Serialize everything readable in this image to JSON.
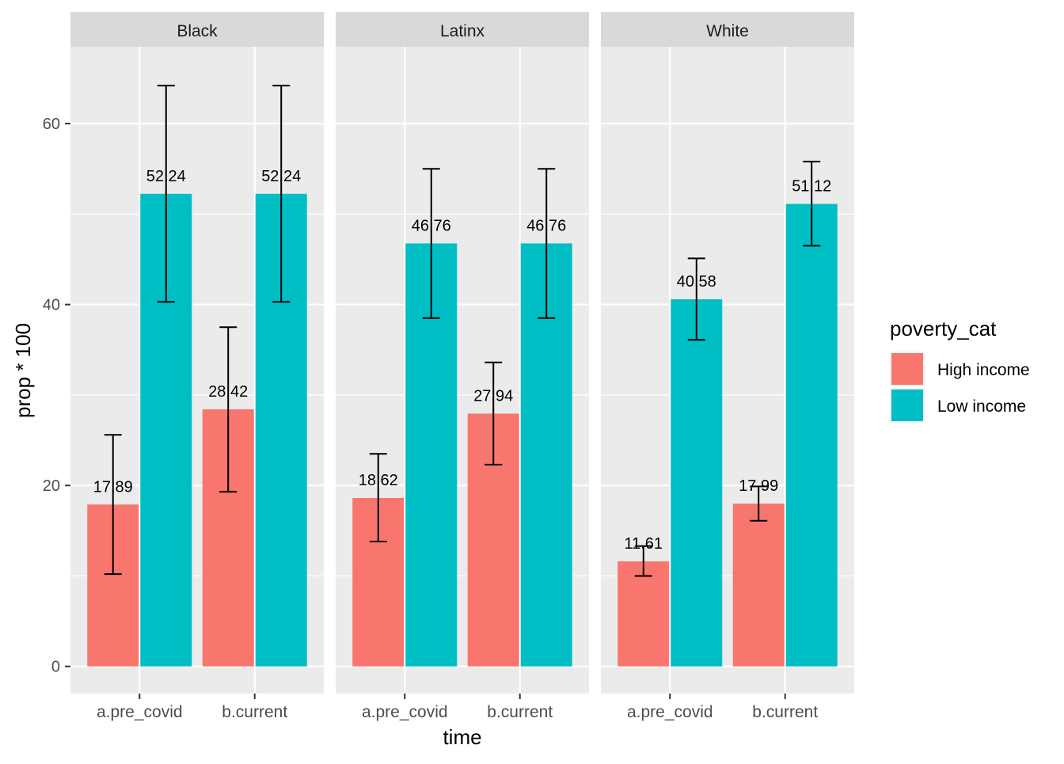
{
  "chart_data": {
    "type": "bar",
    "facets": [
      "Black",
      "Latinx",
      "White"
    ],
    "categories": [
      "a.pre_covid",
      "b.current"
    ],
    "xlabel": "time",
    "ylabel": "prop * 100",
    "ylim": [
      -3,
      68.5
    ],
    "yticks": [
      0,
      20,
      40,
      60
    ],
    "grid": true,
    "legend": {
      "title": "poverty_cat",
      "position": "right",
      "entries": [
        {
          "name": "High income",
          "color": "#F8766D"
        },
        {
          "name": "Low income",
          "color": "#00BFC4"
        }
      ]
    },
    "colors": {
      "High income": "#F8766D",
      "Low income": "#00BFC4",
      "panel_bg": "#EBEBEB",
      "strip_bg": "#D9D9D9",
      "grid": "#FFFFFF",
      "errorbar": "#000000"
    },
    "panels": [
      {
        "facet": "Black",
        "bars": [
          {
            "category": "a.pre_covid",
            "group": "High income",
            "value": 17.89,
            "label": "17.89",
            "ymin": 10.2,
            "ymax": 25.6
          },
          {
            "category": "a.pre_covid",
            "group": "Low income",
            "value": 52.24,
            "label": "52.24",
            "ymin": 40.3,
            "ymax": 64.2
          },
          {
            "category": "b.current",
            "group": "High income",
            "value": 28.42,
            "label": "28.42",
            "ymin": 19.3,
            "ymax": 37.5
          },
          {
            "category": "b.current",
            "group": "Low income",
            "value": 52.24,
            "label": "52.24",
            "ymin": 40.3,
            "ymax": 64.2
          }
        ]
      },
      {
        "facet": "Latinx",
        "bars": [
          {
            "category": "a.pre_covid",
            "group": "High income",
            "value": 18.62,
            "label": "18.62",
            "ymin": 13.8,
            "ymax": 23.5
          },
          {
            "category": "a.pre_covid",
            "group": "Low income",
            "value": 46.76,
            "label": "46.76",
            "ymin": 38.5,
            "ymax": 55.0
          },
          {
            "category": "b.current",
            "group": "High income",
            "value": 27.94,
            "label": "27.94",
            "ymin": 22.3,
            "ymax": 33.6
          },
          {
            "category": "b.current",
            "group": "Low income",
            "value": 46.76,
            "label": "46.76",
            "ymin": 38.5,
            "ymax": 55.0
          }
        ]
      },
      {
        "facet": "White",
        "bars": [
          {
            "category": "a.pre_covid",
            "group": "High income",
            "value": 11.61,
            "label": "11.61",
            "ymin": 10.0,
            "ymax": 13.3
          },
          {
            "category": "a.pre_covid",
            "group": "Low income",
            "value": 40.58,
            "label": "40.58",
            "ymin": 36.1,
            "ymax": 45.1
          },
          {
            "category": "b.current",
            "group": "High income",
            "value": 17.99,
            "label": "17.99",
            "ymin": 16.1,
            "ymax": 19.9
          },
          {
            "category": "b.current",
            "group": "Low income",
            "value": 51.12,
            "label": "51.12",
            "ymin": 46.5,
            "ymax": 55.8
          }
        ]
      }
    ]
  }
}
